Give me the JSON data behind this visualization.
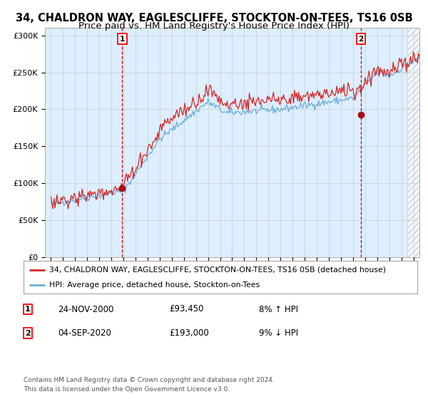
{
  "title": "34, CHALDRON WAY, EAGLESCLIFFE, STOCKTON-ON-TEES, TS16 0SB",
  "subtitle": "Price paid vs. HM Land Registry's House Price Index (HPI)",
  "legend_line1": "34, CHALDRON WAY, EAGLESCLIFFE, STOCKTON-ON-TEES, TS16 0SB (detached house)",
  "legend_line2": "HPI: Average price, detached house, Stockton-on-Tees",
  "footnote": "Contains HM Land Registry data © Crown copyright and database right 2024.\nThis data is licensed under the Open Government Licence v3.0.",
  "annotation1_label": "1",
  "annotation1_date": "24-NOV-2000",
  "annotation1_price": "£93,450",
  "annotation1_hpi": "8% ↑ HPI",
  "annotation2_label": "2",
  "annotation2_date": "04-SEP-2020",
  "annotation2_price": "£193,000",
  "annotation2_hpi": "9% ↓ HPI",
  "sale1_x": 2000.9,
  "sale1_y": 93450,
  "sale2_x": 2020.67,
  "sale2_y": 193000,
  "ylim": [
    0,
    310000
  ],
  "xlim_start": 1994.5,
  "xlim_end": 2025.5,
  "hpi_color": "#6baed6",
  "price_color": "#d62728",
  "sale_dot_color": "#a50f15",
  "vline_color": "#cc0000",
  "bg_color": "#ddeeff",
  "hatch_color": "#bbbbbb",
  "grid_color": "#cccccc",
  "title_fontsize": 10.5,
  "subtitle_fontsize": 9.5,
  "axis_fontsize": 8,
  "tick_fontsize": 7
}
